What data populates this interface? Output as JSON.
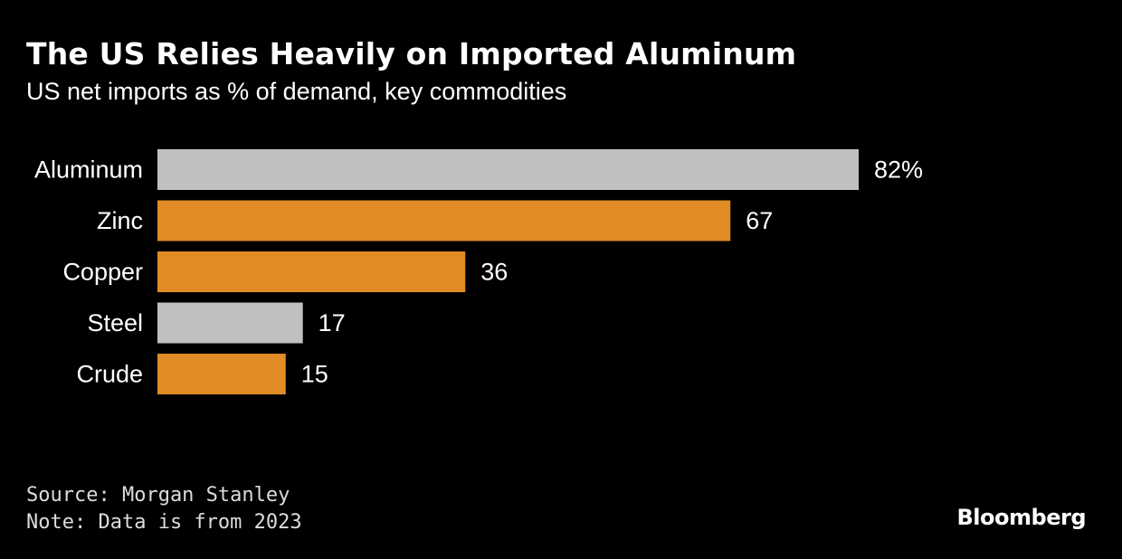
{
  "title": "The US Relies Heavily on Imported Aluminum",
  "subtitle": "US net imports as % of demand, key commodities",
  "source": "Source: Morgan Stanley",
  "note": "Note: Data is from 2023",
  "logo": "Bloomberg",
  "colors": {
    "background": "#000000",
    "highlight": "#c0c0c0",
    "accent": "#e08b25",
    "text": "#ffffff"
  },
  "chart_data": {
    "type": "bar",
    "orientation": "horizontal",
    "categories": [
      "Aluminum",
      "Zinc",
      "Copper",
      "Steel",
      "Crude"
    ],
    "values": [
      82,
      67,
      36,
      17,
      15
    ],
    "value_labels": [
      "82%",
      "67",
      "36",
      "17",
      "15"
    ],
    "bar_colors": [
      "#c0c0c0",
      "#e08b25",
      "#e08b25",
      "#c0c0c0",
      "#e08b25"
    ],
    "xlim": [
      0,
      82
    ],
    "grid": false,
    "legend": "none"
  }
}
